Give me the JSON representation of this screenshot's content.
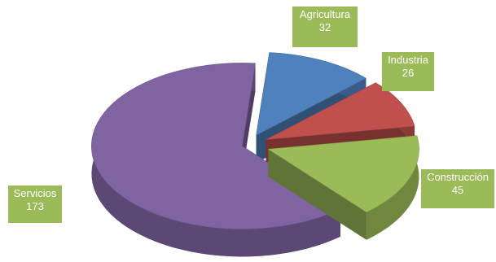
{
  "chart_data": {
    "type": "pie",
    "style": "3d-exploded",
    "title": "",
    "slices": [
      {
        "label": "Agricultura",
        "value": 32,
        "color": "#4f81bd"
      },
      {
        "label": "Industria",
        "value": 26,
        "color": "#c0504d"
      },
      {
        "label": "Construcción",
        "value": 45,
        "color": "#9bbb59"
      },
      {
        "label": "Servicios",
        "value": 173,
        "color": "#8064a2"
      }
    ],
    "label_box_color": "#9bbb59",
    "label_text_color": "#ffffff"
  }
}
